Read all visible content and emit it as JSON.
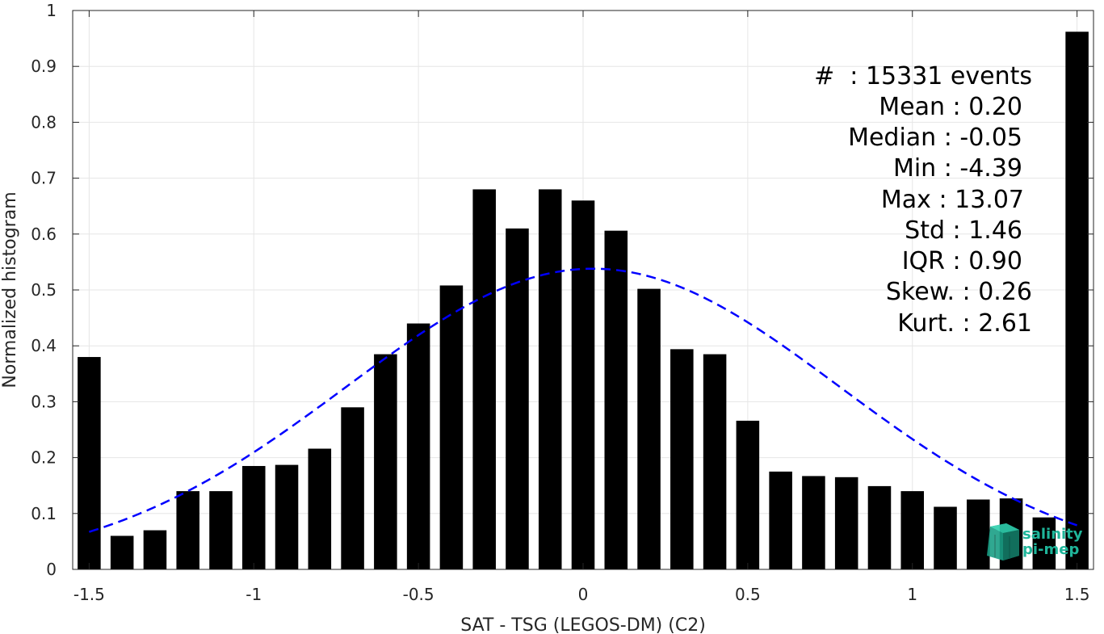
{
  "chart_data": {
    "type": "bar",
    "xlabel": "SAT - TSG (LEGOS-DM) (C2)",
    "ylabel": "Normalized histogram",
    "xlim": [
      -1.55,
      1.55
    ],
    "ylim": [
      0,
      1
    ],
    "x_ticks": [
      "-1.5",
      "-1",
      "-0.5",
      "0",
      "0.5",
      "1",
      "1.5"
    ],
    "y_ticks": [
      "0",
      "0.1",
      "0.2",
      "0.3",
      "0.4",
      "0.5",
      "0.6",
      "0.7",
      "0.8",
      "0.9",
      "1"
    ],
    "grid": true,
    "bar_color": "#000000",
    "x": [
      -1.5,
      -1.4,
      -1.3,
      -1.2,
      -1.1,
      -1.0,
      -0.9,
      -0.8,
      -0.7,
      -0.6,
      -0.5,
      -0.4,
      -0.3,
      -0.2,
      -0.1,
      0.0,
      0.1,
      0.2,
      0.3,
      0.4,
      0.5,
      0.6,
      0.7,
      0.8,
      0.9,
      1.0,
      1.1,
      1.2,
      1.3,
      1.4,
      1.5
    ],
    "values": [
      0.38,
      0.06,
      0.07,
      0.14,
      0.14,
      0.185,
      0.187,
      0.216,
      0.29,
      0.385,
      0.44,
      0.508,
      0.68,
      0.61,
      0.68,
      0.66,
      0.606,
      0.502,
      0.394,
      0.385,
      0.266,
      0.175,
      0.167,
      0.165,
      0.149,
      0.14,
      0.112,
      0.125,
      0.127,
      0.093,
      0.962
    ],
    "fit": {
      "label": "gaussian fit",
      "color": "#0000ff",
      "style": "dashed",
      "mean": 0.03,
      "std": 0.75,
      "amplitude": 0.538,
      "x_range": [
        -1.5,
        1.5
      ]
    },
    "stats": {
      "count": "#  : 15331 events",
      "mean": "Mean : 0.20",
      "median": "Median : -0.05",
      "min": "Min : -4.39",
      "max": "Max : 13.07",
      "std": "Std : 1.46",
      "iqr": "IQR : 0.90",
      "skew": "Skew. : 0.26",
      "kurt": "Kurt. : 2.61"
    }
  },
  "logo": {
    "line1": "salinity",
    "line2": "pi-mep",
    "color": "#1fb59a"
  }
}
